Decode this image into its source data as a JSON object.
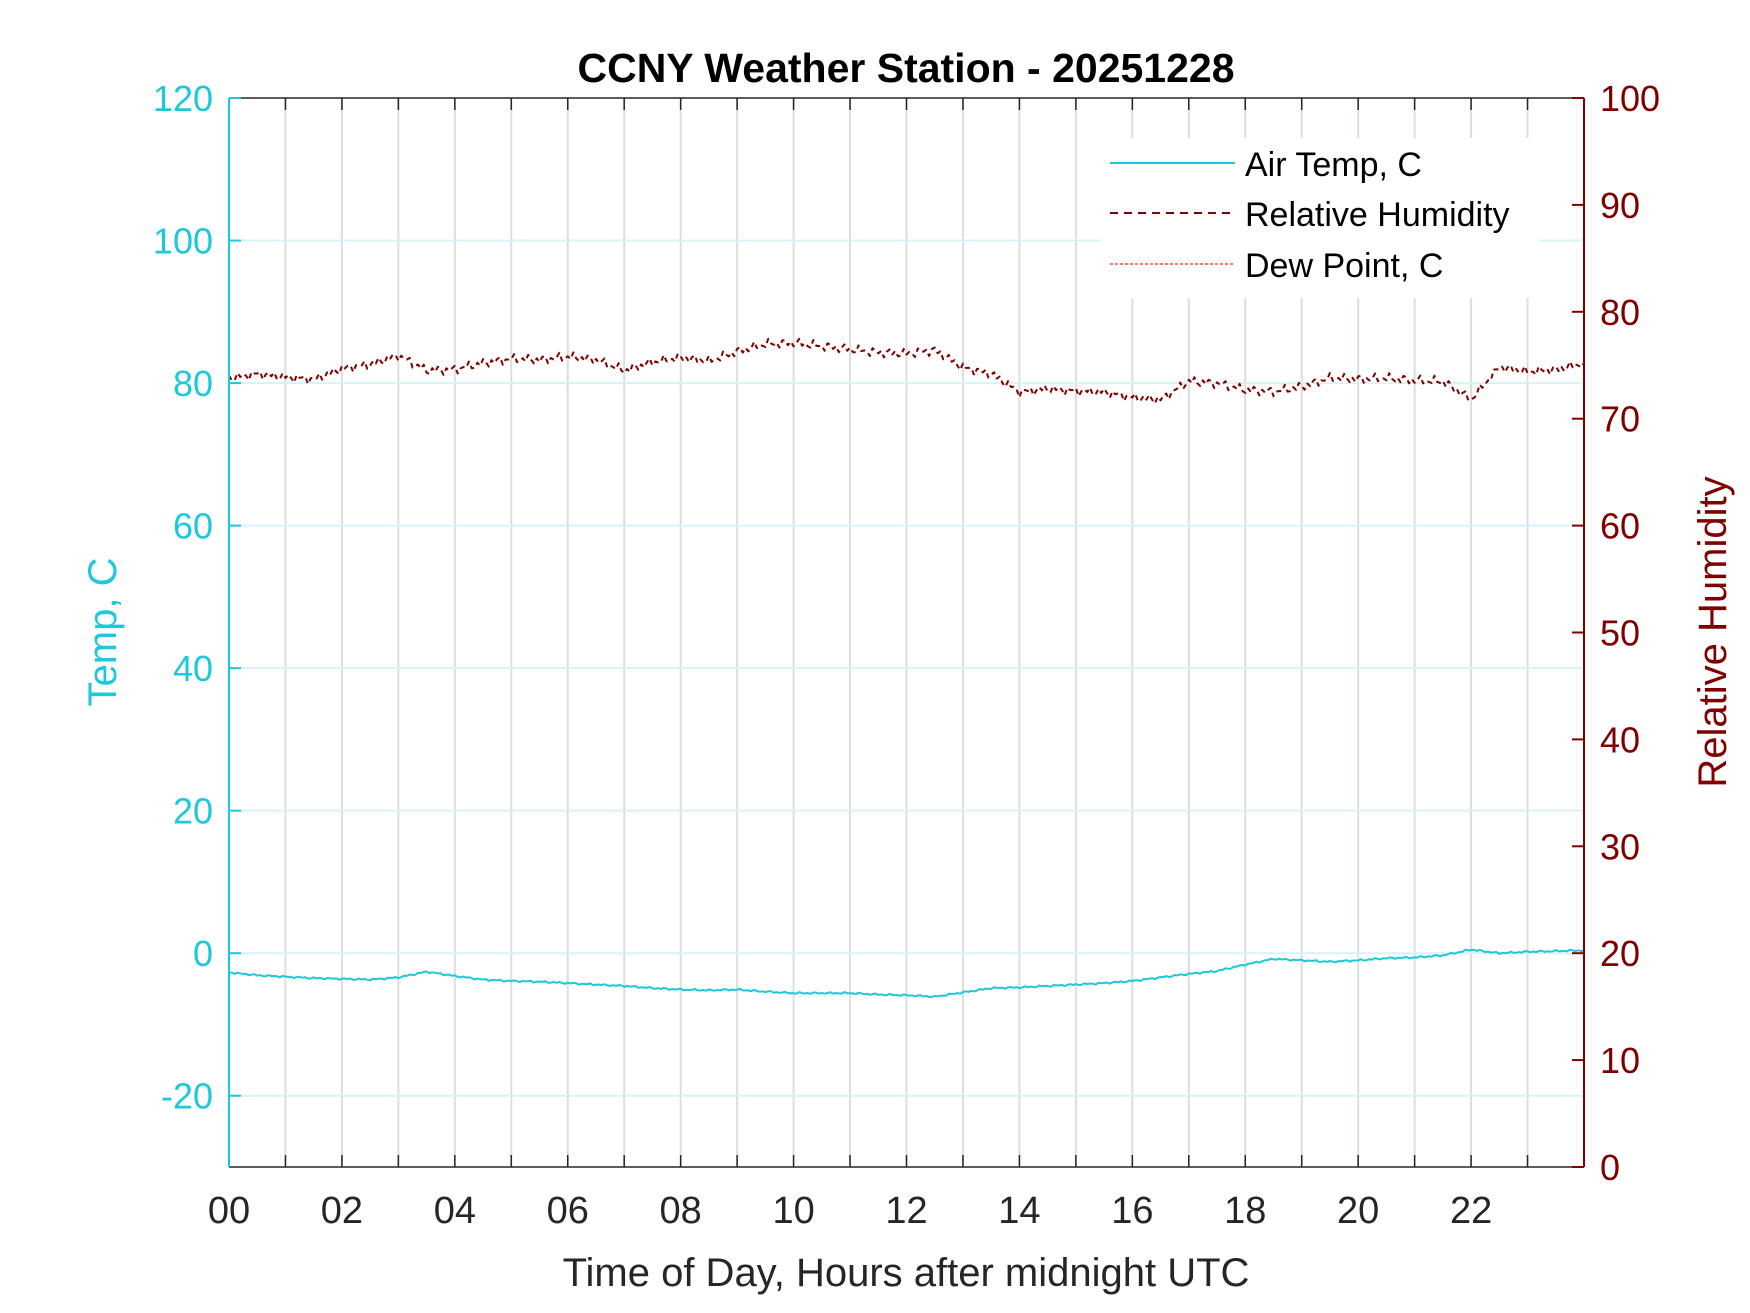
{
  "chart_data": {
    "type": "line",
    "title": "CCNY Weather Station - 20251228",
    "xlabel": "Time of Day, Hours after midnight UTC",
    "ylabel_left": "Temp, C",
    "ylabel_right": "Relative Humidity",
    "xlim": [
      0,
      24
    ],
    "ylim_left": [
      -30,
      120
    ],
    "ylim_right": [
      0,
      100
    ],
    "x_ticks": [
      "00",
      "02",
      "04",
      "06",
      "08",
      "10",
      "12",
      "14",
      "16",
      "18",
      "20",
      "22"
    ],
    "y_ticks_left": [
      "-20",
      "0",
      "20",
      "40",
      "60",
      "80",
      "100",
      "120"
    ],
    "y_ticks_right": [
      "0",
      "10",
      "20",
      "30",
      "40",
      "50",
      "60",
      "70",
      "80",
      "90",
      "100"
    ],
    "grid": true,
    "legend_position": "top-right",
    "colors": {
      "temp": "#1ec8dc",
      "rh": "#800000",
      "dew": "#ff4b33"
    },
    "series": [
      {
        "name": "Air Temp, C",
        "axis": "left",
        "style": "solid",
        "x": [
          0,
          0.5,
          1,
          1.5,
          2,
          2.5,
          3,
          3.5,
          4,
          4.5,
          5,
          5.5,
          6,
          6.5,
          7,
          7.5,
          8,
          8.5,
          9,
          9.5,
          10,
          10.5,
          11,
          11.5,
          12,
          12.5,
          13,
          13.5,
          14,
          14.5,
          15,
          15.5,
          16,
          16.5,
          17,
          17.5,
          18,
          18.5,
          19,
          19.5,
          20,
          20.5,
          21,
          21.5,
          22,
          22.5,
          23,
          23.5,
          24
        ],
        "values": [
          -2.7,
          -3.1,
          -3.3,
          -3.5,
          -3.6,
          -3.7,
          -3.4,
          -2.6,
          -3.2,
          -3.7,
          -3.9,
          -4.0,
          -4.2,
          -4.4,
          -4.6,
          -4.9,
          -5.1,
          -5.2,
          -5.1,
          -5.4,
          -5.6,
          -5.6,
          -5.6,
          -5.8,
          -5.9,
          -6.1,
          -5.5,
          -4.9,
          -4.8,
          -4.6,
          -4.4,
          -4.2,
          -3.9,
          -3.4,
          -2.9,
          -2.5,
          -1.6,
          -0.8,
          -1.0,
          -1.2,
          -1.0,
          -0.7,
          -0.6,
          -0.3,
          0.5,
          0.0,
          0.2,
          0.3,
          0.4
        ]
      },
      {
        "name": "Relative Humidity",
        "axis": "right",
        "style": "dashed",
        "x": [
          0,
          0.5,
          1,
          1.5,
          2,
          2.5,
          3,
          3.5,
          4,
          4.5,
          5,
          5.5,
          6,
          6.5,
          7,
          7.5,
          8,
          8.5,
          9,
          9.5,
          10,
          10.5,
          11,
          11.5,
          12,
          12.5,
          13,
          13.5,
          14,
          14.5,
          15,
          15.5,
          16,
          16.5,
          17,
          17.5,
          18,
          18.5,
          19,
          19.5,
          20,
          20.5,
          21,
          21.5,
          22,
          22.5,
          23,
          23.5,
          24
        ],
        "values": [
          73.8,
          74.2,
          73.9,
          73.7,
          74.7,
          75.1,
          75.9,
          74.5,
          74.6,
          75.2,
          75.6,
          75.5,
          75.8,
          75.5,
          74.5,
          75.3,
          75.7,
          75.4,
          76.3,
          77.0,
          77.1,
          76.8,
          76.5,
          76.2,
          76.1,
          76.4,
          74.8,
          74.2,
          72.5,
          72.8,
          72.6,
          72.5,
          72.0,
          71.8,
          73.5,
          73.3,
          72.7,
          72.5,
          73.0,
          73.8,
          73.7,
          73.8,
          73.6,
          73.5,
          71.8,
          74.8,
          74.4,
          74.6,
          75.2
        ]
      },
      {
        "name": "Dew Point, C",
        "axis": "left",
        "style": "dotted",
        "x": [],
        "values": []
      }
    ]
  }
}
